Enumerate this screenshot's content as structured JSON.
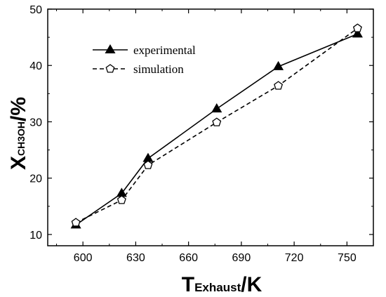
{
  "chart_data": {
    "type": "line",
    "title": "",
    "xlabel": {
      "main": "T",
      "sub": "Exhaust",
      "suffix": "/K"
    },
    "ylabel": {
      "main": "X",
      "sub": "CH3OH",
      "suffix": "/%"
    },
    "xlim": [
      580,
      765
    ],
    "ylim": [
      8,
      50
    ],
    "x_ticks": [
      600,
      630,
      660,
      690,
      720,
      750
    ],
    "y_ticks": [
      10,
      20,
      30,
      40,
      50
    ],
    "grid": false,
    "legend_position": "top-left",
    "series": [
      {
        "name": "experimental",
        "marker": "filled-triangle",
        "line_style": "solid",
        "color": "#000000",
        "x": [
          596,
          622,
          637,
          676,
          711,
          756
        ],
        "y": [
          11.7,
          17.3,
          23.5,
          32.3,
          39.8,
          45.6
        ]
      },
      {
        "name": "simulation",
        "marker": "open-pentagon",
        "line_style": "dashed",
        "color": "#000000",
        "x": [
          596,
          622,
          637,
          676,
          711,
          756
        ],
        "y": [
          12.1,
          16.1,
          22.3,
          29.9,
          36.4,
          46.6
        ]
      }
    ]
  }
}
